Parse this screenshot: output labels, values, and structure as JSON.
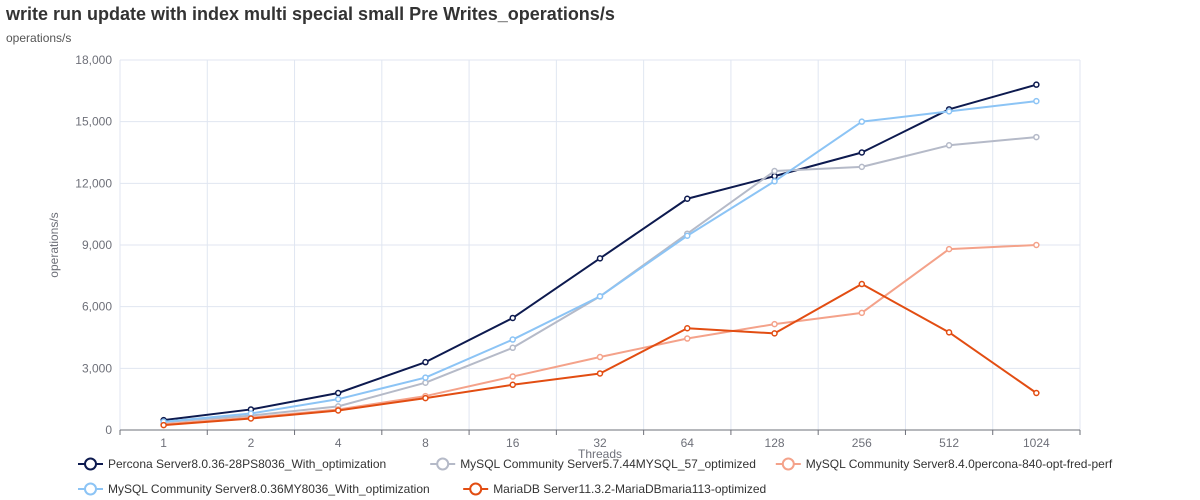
{
  "title": "write run update with index multi special small Pre Writes_operations/s",
  "subtitle": "operations/s",
  "chart_data": {
    "type": "line",
    "title": "write run update with index multi special small Pre Writes_operations/s",
    "xlabel": "Threads",
    "ylabel": "operations/s",
    "categories": [
      "1",
      "2",
      "4",
      "8",
      "16",
      "32",
      "64",
      "128",
      "256",
      "512",
      "1024"
    ],
    "ylim": [
      0,
      18000
    ],
    "yticks": [
      0,
      3000,
      6000,
      9000,
      12000,
      15000,
      18000
    ],
    "ytick_labels": [
      "0",
      "3,000",
      "6,000",
      "9,000",
      "12,000",
      "15,000",
      "18,000"
    ],
    "grid": true,
    "legend_position": "bottom",
    "series": [
      {
        "name": "Percona Server8.0.36-28PS8036_With_optimization",
        "color": "#0d1a4f",
        "values": [
          480,
          1000,
          1800,
          3300,
          5450,
          8350,
          11250,
          12350,
          13500,
          15600,
          16800
        ]
      },
      {
        "name": "MySQL Community Server5.7.44MYSQL_57_optimized",
        "color": "#b5bac8",
        "values": [
          380,
          700,
          1150,
          2300,
          4000,
          6500,
          9550,
          12600,
          12800,
          13850,
          14250
        ]
      },
      {
        "name": "MySQL Community Server8.4.0percona-840-opt-fred-perf",
        "color": "#f4a28a",
        "values": [
          280,
          600,
          1000,
          1650,
          2600,
          3550,
          4450,
          5150,
          5700,
          8800,
          9000
        ]
      },
      {
        "name": "MySQL Community Server8.0.36MY8036_With_optimization",
        "color": "#8cc4f5",
        "values": [
          400,
          800,
          1500,
          2550,
          4400,
          6500,
          9450,
          12100,
          15000,
          15500,
          16000
        ]
      },
      {
        "name": "MariaDB Server11.3.2-MariaDBmaria113-optimized",
        "color": "#e24d12",
        "values": [
          240,
          560,
          950,
          1550,
          2200,
          2750,
          4950,
          4700,
          7100,
          4750,
          1800
        ]
      }
    ]
  }
}
